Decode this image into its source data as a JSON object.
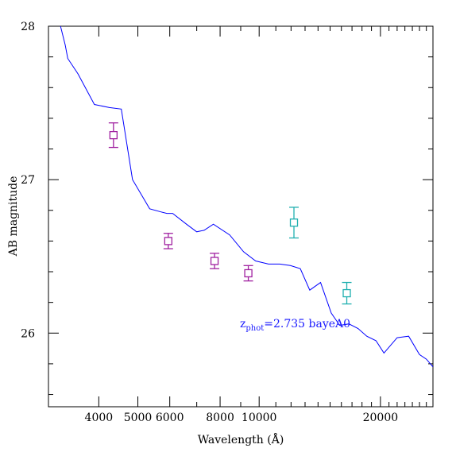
{
  "chart_data": {
    "type": "line",
    "xlabel": "Wavelength (Å)",
    "ylabel": "AB magnitude",
    "x_scale": "log",
    "y_inverted": true,
    "xlim": [
      3000,
      27000
    ],
    "ylim": [
      28.0,
      25.52
    ],
    "x_ticks": [
      {
        "value": 4000,
        "label": "4000"
      },
      {
        "value": 5000,
        "label": "5000"
      },
      {
        "value": 6000,
        "label": "6000"
      },
      {
        "value": 8000,
        "label": "8000"
      },
      {
        "value": 10000,
        "label": "10000"
      },
      {
        "value": 20000,
        "label": "20000"
      }
    ],
    "y_ticks": [
      {
        "value": 26,
        "label": "26"
      },
      {
        "value": 27,
        "label": "27"
      },
      {
        "value": 28,
        "label": "28"
      }
    ],
    "annotation": {
      "main": "z",
      "sub": "phot",
      "rest": "=2.735 bayeA0",
      "color": "#1a1aff"
    },
    "series": [
      {
        "kind": "sed-line",
        "color": "#0000ff",
        "x": [
          3200,
          3300,
          3350,
          3550,
          3900,
          4250,
          4550,
          4850,
          5350,
          5700,
          5900,
          6100,
          6600,
          7000,
          7300,
          7700,
          8450,
          9150,
          9800,
          10550,
          11250,
          11950,
          12650,
          13350,
          14200,
          15100,
          15850,
          16700,
          17600,
          18500,
          19500,
          20400,
          22000,
          23500,
          25000,
          26000,
          27000
        ],
        "y": [
          28.02,
          27.88,
          27.79,
          27.69,
          27.49,
          27.47,
          27.46,
          27.0,
          26.81,
          26.79,
          26.78,
          26.78,
          26.71,
          26.66,
          26.67,
          26.71,
          26.64,
          26.53,
          26.47,
          26.45,
          26.45,
          26.44,
          26.42,
          26.28,
          26.33,
          26.13,
          26.05,
          26.06,
          26.03,
          25.98,
          25.95,
          25.87,
          25.97,
          25.98,
          25.86,
          25.83,
          25.78
        ]
      },
      {
        "kind": "photometry",
        "color": "#a020a0",
        "points": [
          {
            "x": 4350,
            "y": 27.29,
            "err": 0.08
          },
          {
            "x": 5950,
            "y": 26.6,
            "err": 0.05
          },
          {
            "x": 7750,
            "y": 26.47,
            "err": 0.05
          },
          {
            "x": 9400,
            "y": 26.39,
            "err": 0.05
          }
        ]
      },
      {
        "kind": "photometry",
        "color": "#20b0b0",
        "points": [
          {
            "x": 12200,
            "y": 26.72,
            "err": 0.1
          },
          {
            "x": 16500,
            "y": 26.26,
            "err": 0.07
          }
        ]
      }
    ]
  }
}
